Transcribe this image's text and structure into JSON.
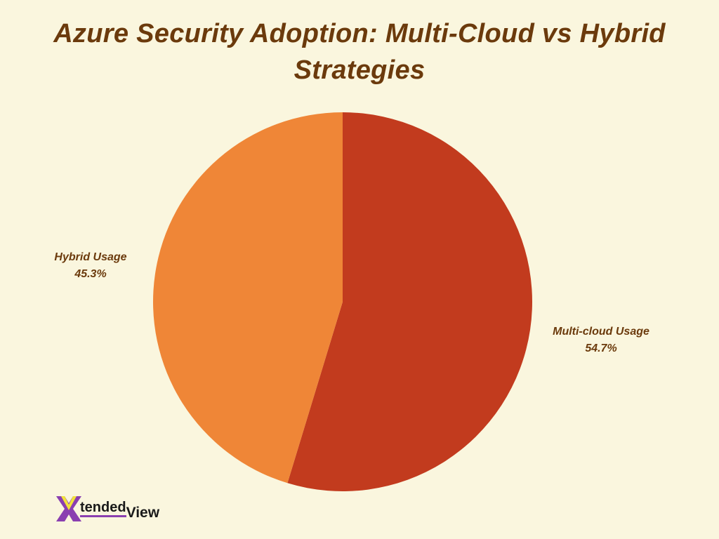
{
  "title_line1": "Azure Security Adoption: Multi-Cloud vs Hybrid",
  "title_line2": "Strategies",
  "slices": [
    {
      "label": "Multi-cloud Usage",
      "value_text": "54.7%",
      "color": "#c23b1e"
    },
    {
      "label": "Hybrid Usage",
      "value_text": "45.3%",
      "color": "#ef8637"
    }
  ],
  "logo": {
    "part1": "tended",
    "part2": "View",
    "mark": "X"
  },
  "colors": {
    "background": "#faf6de",
    "text": "#6b3a0c",
    "logo_purple": "#8a3fb0",
    "logo_yellow": "#f2e33a"
  },
  "chart_data": {
    "type": "pie",
    "title": "Azure Security Adoption: Multi-Cloud vs Hybrid Strategies",
    "categories": [
      "Multi-cloud Usage",
      "Hybrid Usage"
    ],
    "values": [
      54.7,
      45.3
    ],
    "colors": [
      "#c23b1e",
      "#ef8637"
    ],
    "start_angle": "12 o'clock, clockwise",
    "legend": "none (direct labels)"
  }
}
